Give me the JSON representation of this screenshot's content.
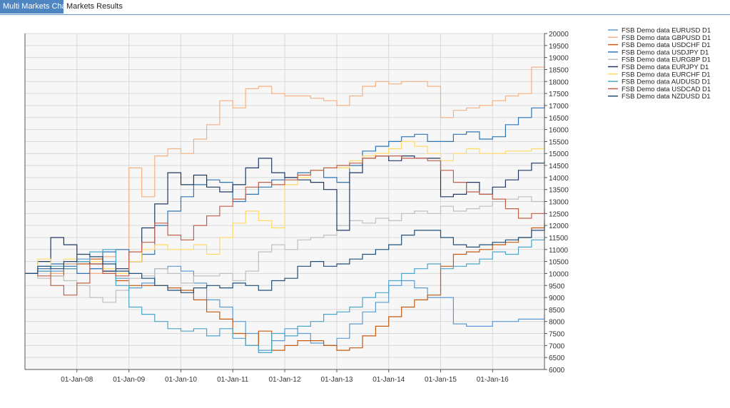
{
  "tabs": [
    {
      "label": "Multi Markets Charts",
      "active": true
    },
    {
      "label": "Markets Results",
      "active": false
    }
  ],
  "chart_data": {
    "type": "line",
    "title": "",
    "xlabel": "",
    "ylabel": "",
    "x_axis": {
      "type": "date",
      "range": [
        "2007-01-01",
        "2016-12-31"
      ],
      "tick_labels": [
        "01-Jan-08",
        "01-Jan-09",
        "01-Jan-10",
        "01-Jan-11",
        "01-Jan-12",
        "01-Jan-13",
        "01-Jan-14",
        "01-Jan-15",
        "01-Jan-16"
      ]
    },
    "y_axis": {
      "range": [
        6000,
        20000
      ],
      "step": 500,
      "position": "right"
    },
    "grid": true,
    "legend": "top-right",
    "series": [
      {
        "name": "FSB Demo data EURUSD D1",
        "color": "#5b9bd5",
        "x": [
          "2007-01-01",
          "2007-04-01",
          "2007-07-01",
          "2007-10-01",
          "2008-01-01",
          "2008-04-01",
          "2008-07-01",
          "2008-10-01",
          "2009-01-01",
          "2009-04-01",
          "2009-07-01",
          "2009-10-01",
          "2010-01-01",
          "2010-04-01",
          "2010-07-01",
          "2010-10-01",
          "2011-01-01",
          "2011-04-01",
          "2011-07-01",
          "2011-10-01",
          "2012-01-01",
          "2012-04-01",
          "2012-07-01",
          "2012-10-01",
          "2013-01-01",
          "2013-04-01",
          "2013-07-01",
          "2013-10-01",
          "2014-01-01",
          "2014-04-01",
          "2014-07-01",
          "2014-10-01",
          "2015-01-01",
          "2015-04-01",
          "2015-07-01",
          "2015-10-01",
          "2016-01-01",
          "2016-04-01",
          "2016-07-01",
          "2016-10-01",
          "2016-12-31"
        ],
        "y": [
          10000,
          10300,
          10100,
          10400,
          10600,
          10200,
          10500,
          9800,
          9400,
          9600,
          10200,
          10300,
          10100,
          9600,
          8900,
          8600,
          8000,
          7500,
          6800,
          7200,
          7700,
          7500,
          7100,
          7000,
          7300,
          7900,
          8400,
          8800,
          9500,
          9700,
          9400,
          9000,
          9000,
          7900,
          7800,
          7800,
          8000,
          8000,
          8100,
          8100,
          8300
        ]
      },
      {
        "name": "FSB Demo data GBPUSD D1",
        "color": "#f4b183",
        "x": [
          "2007-01-01",
          "2007-04-01",
          "2007-07-01",
          "2007-10-01",
          "2008-01-01",
          "2008-04-01",
          "2008-07-01",
          "2008-10-01",
          "2009-01-01",
          "2009-04-01",
          "2009-07-01",
          "2009-10-01",
          "2010-01-01",
          "2010-04-01",
          "2010-07-01",
          "2010-10-01",
          "2011-01-01",
          "2011-04-01",
          "2011-07-01",
          "2011-10-01",
          "2012-01-01",
          "2012-04-01",
          "2012-07-01",
          "2012-10-01",
          "2013-01-01",
          "2013-04-01",
          "2013-07-01",
          "2013-10-01",
          "2014-01-01",
          "2014-04-01",
          "2014-07-01",
          "2014-10-01",
          "2015-01-01",
          "2015-04-01",
          "2015-07-01",
          "2015-10-01",
          "2016-01-01",
          "2016-04-01",
          "2016-07-01",
          "2016-10-01",
          "2016-12-31"
        ],
        "y": [
          10000,
          10200,
          10000,
          10400,
          10500,
          10000,
          10700,
          11000,
          14400,
          13200,
          14900,
          15200,
          15000,
          15600,
          16200,
          17200,
          16900,
          17700,
          17800,
          17500,
          17400,
          17400,
          17300,
          17200,
          17000,
          17400,
          17800,
          18000,
          17900,
          18000,
          18000,
          17800,
          16500,
          16800,
          16900,
          17000,
          17200,
          17400,
          17500,
          18600,
          19100
        ]
      },
      {
        "name": "FSB Demo data USDCHF D1",
        "color": "#c55a11",
        "x": [
          "2007-01-01",
          "2007-04-01",
          "2007-07-01",
          "2007-10-01",
          "2008-01-01",
          "2008-04-01",
          "2008-07-01",
          "2008-10-01",
          "2009-01-01",
          "2009-04-01",
          "2009-07-01",
          "2009-10-01",
          "2010-01-01",
          "2010-04-01",
          "2010-07-01",
          "2010-10-01",
          "2011-01-01",
          "2011-04-01",
          "2011-07-01",
          "2011-10-01",
          "2012-01-01",
          "2012-04-01",
          "2012-07-01",
          "2012-10-01",
          "2013-01-01",
          "2013-04-01",
          "2013-07-01",
          "2013-10-01",
          "2014-01-01",
          "2014-04-01",
          "2014-07-01",
          "2014-10-01",
          "2015-01-01",
          "2015-04-01",
          "2015-07-01",
          "2015-10-01",
          "2016-01-01",
          "2016-04-01",
          "2016-07-01",
          "2016-10-01",
          "2016-12-31"
        ],
        "y": [
          10000,
          10100,
          9900,
          10200,
          10400,
          10600,
          10100,
          9700,
          9500,
          9500,
          9500,
          9400,
          9300,
          8900,
          8400,
          8100,
          7500,
          7000,
          7600,
          6800,
          7000,
          7200,
          7200,
          7000,
          6800,
          6900,
          7400,
          7800,
          8200,
          8600,
          8900,
          9100,
          10300,
          10800,
          10900,
          11000,
          11200,
          11300,
          11500,
          11900,
          12200
        ]
      },
      {
        "name": "FSB Demo data USDJPY D1",
        "color": "#2e75b6",
        "x": [
          "2007-01-01",
          "2007-04-01",
          "2007-07-01",
          "2007-10-01",
          "2008-01-01",
          "2008-04-01",
          "2008-07-01",
          "2008-10-01",
          "2009-01-01",
          "2009-04-01",
          "2009-07-01",
          "2009-10-01",
          "2010-01-01",
          "2010-04-01",
          "2010-07-01",
          "2010-10-01",
          "2011-01-01",
          "2011-04-01",
          "2011-07-01",
          "2011-10-01",
          "2012-01-01",
          "2012-04-01",
          "2012-07-01",
          "2012-10-01",
          "2013-01-01",
          "2013-04-01",
          "2013-07-01",
          "2013-10-01",
          "2014-01-01",
          "2014-04-01",
          "2014-07-01",
          "2014-10-01",
          "2015-01-01",
          "2015-04-01",
          "2015-07-01",
          "2015-10-01",
          "2016-01-01",
          "2016-04-01",
          "2016-07-01",
          "2016-10-01",
          "2016-12-31"
        ],
        "y": [
          10000,
          10200,
          10400,
          10300,
          10000,
          10200,
          10900,
          11000,
          10500,
          10800,
          12000,
          12600,
          13200,
          13700,
          13900,
          13800,
          13000,
          13300,
          13600,
          13900,
          14000,
          14200,
          14300,
          14000,
          13800,
          14500,
          15100,
          15300,
          15500,
          15700,
          15800,
          15500,
          15500,
          15800,
          15900,
          15600,
          15700,
          16200,
          16500,
          16900,
          17100
        ]
      },
      {
        "name": "FSB Demo data EURGBP D1",
        "color": "#bfbfbf",
        "x": [
          "2007-01-01",
          "2007-04-01",
          "2007-07-01",
          "2007-10-01",
          "2008-01-01",
          "2008-04-01",
          "2008-07-01",
          "2008-10-01",
          "2009-01-01",
          "2009-04-01",
          "2009-07-01",
          "2009-10-01",
          "2010-01-01",
          "2010-04-01",
          "2010-07-01",
          "2010-10-01",
          "2011-01-01",
          "2011-04-01",
          "2011-07-01",
          "2011-10-01",
          "2012-01-01",
          "2012-04-01",
          "2012-07-01",
          "2012-10-01",
          "2013-01-01",
          "2013-04-01",
          "2013-07-01",
          "2013-10-01",
          "2014-01-01",
          "2014-04-01",
          "2014-07-01",
          "2014-10-01",
          "2015-01-01",
          "2015-04-01",
          "2015-07-01",
          "2015-10-01",
          "2016-01-01",
          "2016-04-01",
          "2016-07-01",
          "2016-10-01",
          "2016-12-31"
        ],
        "y": [
          10000,
          9800,
          9900,
          9700,
          9500,
          9000,
          8800,
          9300,
          9800,
          9900,
          10200,
          10000,
          9600,
          9900,
          9900,
          10000,
          9700,
          10100,
          10900,
          11200,
          11000,
          11400,
          11500,
          11600,
          12000,
          12200,
          12100,
          12300,
          12200,
          12500,
          12600,
          12500,
          12800,
          12600,
          12700,
          12800,
          13000,
          13100,
          13200,
          13000,
          13000
        ]
      },
      {
        "name": "FSB Demo data EURJPY D1",
        "color": "#203864",
        "x": [
          "2007-01-01",
          "2007-04-01",
          "2007-07-01",
          "2007-10-01",
          "2008-01-01",
          "2008-04-01",
          "2008-07-01",
          "2008-10-01",
          "2009-01-01",
          "2009-04-01",
          "2009-07-01",
          "2009-10-01",
          "2010-01-01",
          "2010-04-01",
          "2010-07-01",
          "2010-10-01",
          "2011-01-01",
          "2011-04-01",
          "2011-07-01",
          "2011-10-01",
          "2012-01-01",
          "2012-04-01",
          "2012-07-01",
          "2012-10-01",
          "2013-01-01",
          "2013-04-01",
          "2013-07-01",
          "2013-10-01",
          "2014-01-01",
          "2014-04-01",
          "2014-07-01",
          "2014-10-01",
          "2015-01-01",
          "2015-04-01",
          "2015-07-01",
          "2015-10-01",
          "2016-01-01",
          "2016-04-01",
          "2016-07-01",
          "2016-10-01",
          "2016-12-31"
        ],
        "y": [
          10000,
          10500,
          11500,
          11200,
          10500,
          10400,
          10100,
          10200,
          10500,
          11900,
          12900,
          14200,
          13700,
          14100,
          13600,
          13400,
          13700,
          14400,
          14800,
          14200,
          14000,
          13900,
          13800,
          13500,
          11800,
          14200,
          14800,
          14900,
          14700,
          14900,
          14800,
          14800,
          13200,
          13300,
          13800,
          13300,
          13600,
          13900,
          14300,
          14600,
          14700
        ]
      },
      {
        "name": "FSB Demo data EURCHF D1",
        "color": "#ffd966",
        "x": [
          "2007-01-01",
          "2007-04-01",
          "2007-07-01",
          "2007-10-01",
          "2008-01-01",
          "2008-04-01",
          "2008-07-01",
          "2008-10-01",
          "2009-01-01",
          "2009-04-01",
          "2009-07-01",
          "2009-10-01",
          "2010-01-01",
          "2010-04-01",
          "2010-07-01",
          "2010-10-01",
          "2011-01-01",
          "2011-04-01",
          "2011-07-01",
          "2011-10-01",
          "2012-01-01",
          "2012-04-01",
          "2012-07-01",
          "2012-10-01",
          "2013-01-01",
          "2013-04-01",
          "2013-07-01",
          "2013-10-01",
          "2014-01-01",
          "2014-04-01",
          "2014-07-01",
          "2014-10-01",
          "2015-01-01",
          "2015-04-01",
          "2015-07-01",
          "2015-10-01",
          "2016-01-01",
          "2016-04-01",
          "2016-07-01",
          "2016-10-01",
          "2016-12-31"
        ],
        "y": [
          10000,
          10600,
          10300,
          10600,
          10800,
          10500,
          10200,
          10000,
          10500,
          11000,
          11200,
          11000,
          11000,
          11200,
          10800,
          11500,
          12100,
          12600,
          12200,
          11900,
          13700,
          14000,
          14300,
          14400,
          14400,
          14700,
          14900,
          15000,
          15200,
          15500,
          15300,
          15000,
          14700,
          15000,
          15200,
          15000,
          15000,
          15100,
          15100,
          15200,
          15300
        ]
      },
      {
        "name": "FSB Demo data AUDUSD D1",
        "color": "#4aa6c9",
        "x": [
          "2007-01-01",
          "2007-04-01",
          "2007-07-01",
          "2007-10-01",
          "2008-01-01",
          "2008-04-01",
          "2008-07-01",
          "2008-10-01",
          "2009-01-01",
          "2009-04-01",
          "2009-07-01",
          "2009-10-01",
          "2010-01-01",
          "2010-04-01",
          "2010-07-01",
          "2010-10-01",
          "2011-01-01",
          "2011-04-01",
          "2011-07-01",
          "2011-10-01",
          "2012-01-01",
          "2012-04-01",
          "2012-07-01",
          "2012-10-01",
          "2013-01-01",
          "2013-04-01",
          "2013-07-01",
          "2013-10-01",
          "2014-01-01",
          "2014-04-01",
          "2014-07-01",
          "2014-10-01",
          "2015-01-01",
          "2015-04-01",
          "2015-07-01",
          "2015-10-01",
          "2016-01-01",
          "2016-04-01",
          "2016-07-01",
          "2016-10-01",
          "2016-12-31"
        ],
        "y": [
          10000,
          10100,
          10300,
          10200,
          10500,
          10900,
          11000,
          9500,
          8600,
          8300,
          8000,
          7700,
          7600,
          7700,
          7400,
          7700,
          7300,
          7000,
          6700,
          7500,
          7400,
          7800,
          8000,
          8300,
          8400,
          8600,
          9000,
          9200,
          9700,
          10000,
          10200,
          10400,
          10200,
          10300,
          10400,
          10600,
          10900,
          10800,
          11100,
          11400,
          12000
        ]
      },
      {
        "name": "FSB Demo data USDCAD D1",
        "color": "#c0604a",
        "x": [
          "2007-01-01",
          "2007-04-01",
          "2007-07-01",
          "2007-10-01",
          "2008-01-01",
          "2008-04-01",
          "2008-07-01",
          "2008-10-01",
          "2009-01-01",
          "2009-04-01",
          "2009-07-01",
          "2009-10-01",
          "2010-01-01",
          "2010-04-01",
          "2010-07-01",
          "2010-10-01",
          "2011-01-01",
          "2011-04-01",
          "2011-07-01",
          "2011-10-01",
          "2012-01-01",
          "2012-04-01",
          "2012-07-01",
          "2012-10-01",
          "2013-01-01",
          "2013-04-01",
          "2013-07-01",
          "2013-10-01",
          "2014-01-01",
          "2014-04-01",
          "2014-07-01",
          "2014-10-01",
          "2015-01-01",
          "2015-04-01",
          "2015-07-01",
          "2015-10-01",
          "2016-01-01",
          "2016-04-01",
          "2016-07-01",
          "2016-10-01",
          "2016-12-31"
        ],
        "y": [
          10000,
          9900,
          9500,
          9100,
          9600,
          10400,
          10000,
          9900,
          10900,
          11300,
          12100,
          11600,
          11400,
          12000,
          12400,
          12800,
          13100,
          13600,
          13800,
          13700,
          13900,
          14100,
          14300,
          14400,
          14500,
          14600,
          14800,
          14900,
          14900,
          14800,
          14800,
          14700,
          14300,
          13800,
          13400,
          13300,
          13100,
          12700,
          12300,
          12500,
          12700
        ]
      },
      {
        "name": "FSB Demo data NZDUSD D1",
        "color": "#1f4e79",
        "x": [
          "2007-01-01",
          "2007-04-01",
          "2007-07-01",
          "2007-10-01",
          "2008-01-01",
          "2008-04-01",
          "2008-07-01",
          "2008-10-01",
          "2009-01-01",
          "2009-04-01",
          "2009-07-01",
          "2009-10-01",
          "2010-01-01",
          "2010-04-01",
          "2010-07-01",
          "2010-10-01",
          "2011-01-01",
          "2011-04-01",
          "2011-07-01",
          "2011-10-01",
          "2012-01-01",
          "2012-04-01",
          "2012-07-01",
          "2012-10-01",
          "2013-01-01",
          "2013-04-01",
          "2013-07-01",
          "2013-10-01",
          "2014-01-01",
          "2014-04-01",
          "2014-07-01",
          "2014-10-01",
          "2015-01-01",
          "2015-04-01",
          "2015-07-01",
          "2015-10-01",
          "2016-01-01",
          "2016-04-01",
          "2016-07-01",
          "2016-10-01",
          "2016-12-31"
        ],
        "y": [
          10000,
          10300,
          10200,
          10500,
          10800,
          10700,
          10400,
          10100,
          10000,
          9800,
          9500,
          9300,
          9200,
          9400,
          9500,
          9400,
          9600,
          9500,
          9300,
          9700,
          9800,
          10300,
          10500,
          10300,
          10400,
          10600,
          10800,
          11000,
          11200,
          11600,
          11800,
          11800,
          11500,
          11200,
          11100,
          11200,
          11300,
          11400,
          11500,
          11800,
          12100
        ]
      }
    ]
  }
}
